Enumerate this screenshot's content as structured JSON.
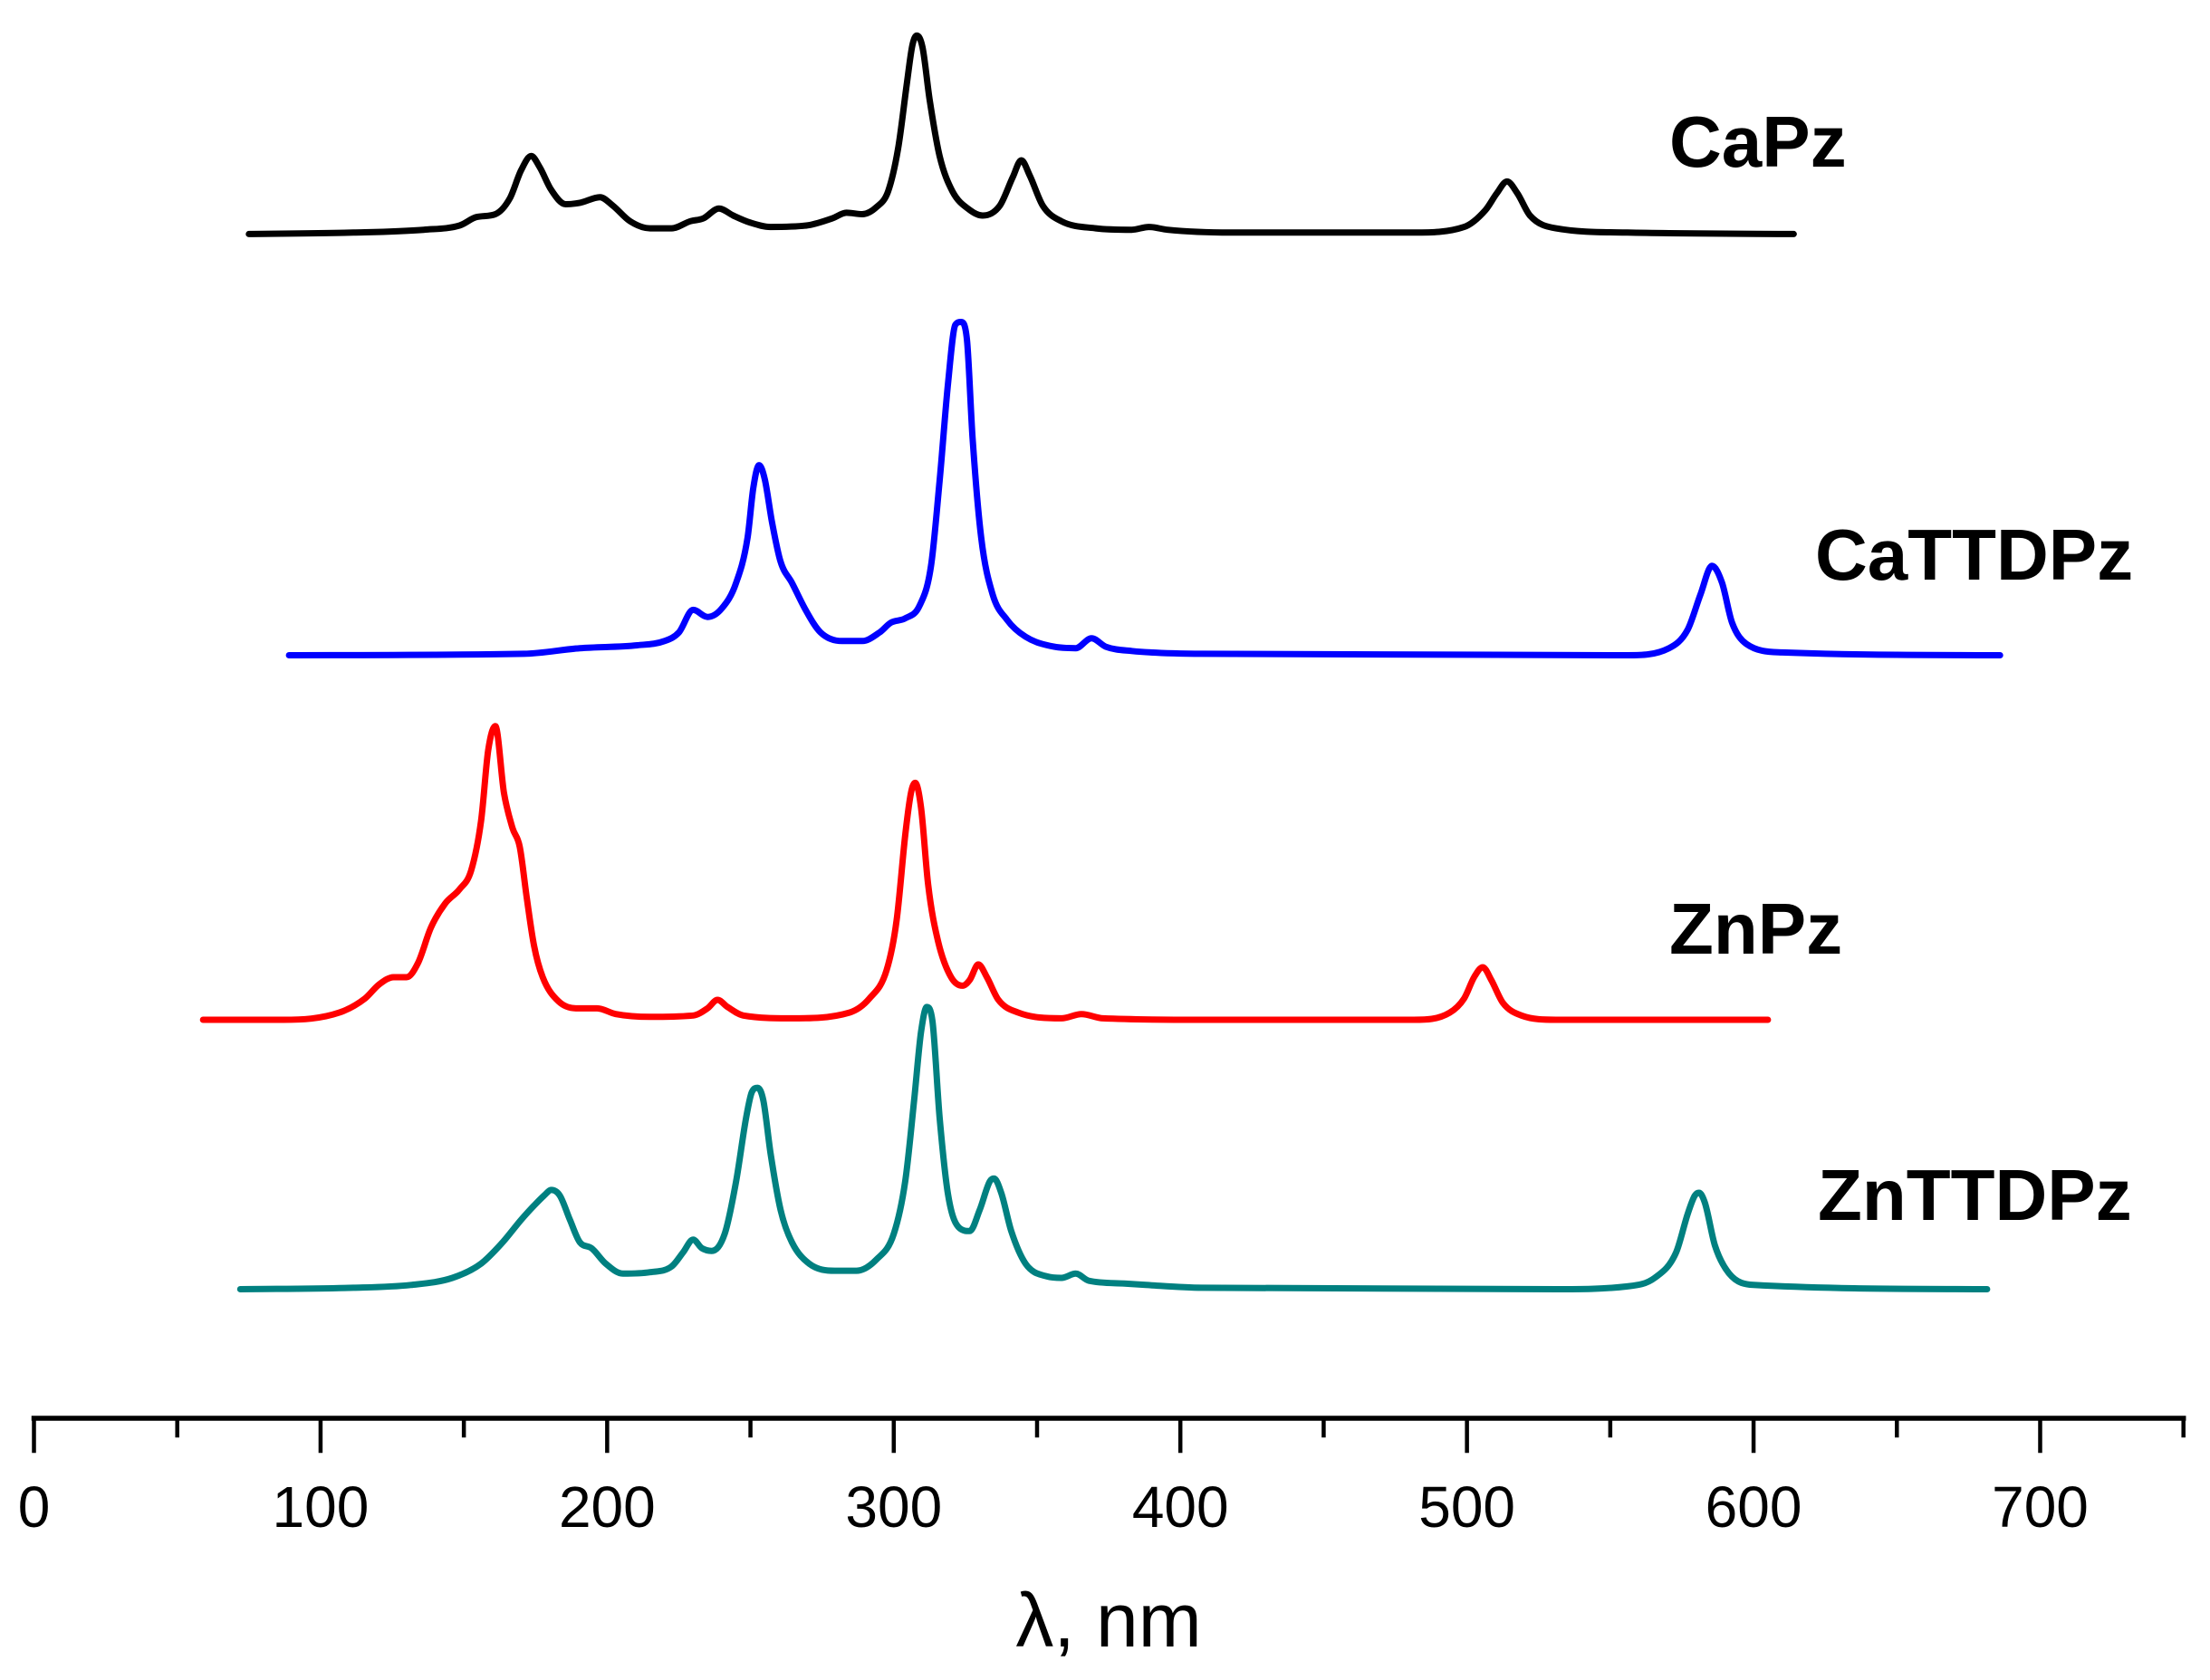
{
  "chart_data": {
    "type": "line",
    "title": "",
    "xlabel": "λ, nm",
    "ylabel": "",
    "xlim": [
      0,
      750
    ],
    "ylim": [
      0,
      100
    ],
    "xticks": [
      0,
      100,
      200,
      300,
      400,
      500,
      600,
      700
    ],
    "xtick_labels": [
      "0",
      "100",
      "200",
      "300",
      "400",
      "500",
      "600",
      "700"
    ],
    "minor_xticks": [
      50,
      150,
      250,
      350,
      450,
      550,
      650,
      750
    ],
    "y_axis_visible": false,
    "grid": false,
    "legend": "none (series labelled inline, right of each trace)",
    "stacking": "traces vertically offset; y = intensity (a.u.) above each trace offset",
    "series": [
      {
        "name": "CaPz",
        "color": "#000000",
        "offset": 83.5,
        "x": [
          75,
          111.5,
          136,
          148.5,
          154.5,
          161,
          166,
          170,
          173.5,
          176.5,
          180.5,
          185.5,
          190.5,
          197.5,
          202,
          208,
          215,
          222.5,
          229,
          233.5,
          239,
          244,
          250,
          257,
          269.5,
          278.5,
          283.5,
          289,
          294,
          298,
          301.5,
          304.5,
          306.5,
          308,
          310,
          312.5,
          316,
          320.5,
          326.5,
          331,
          337,
          341.5,
          344.5,
          347.5,
          352,
          358.5,
          370.5,
          383,
          389,
          395.5,
          417.5,
          481.5,
          499,
          506.5,
          510.5,
          514,
          517.5,
          522,
          531,
          556,
          614
        ],
        "y": [
          0,
          0.1,
          0.3,
          0.6,
          1.2,
          1.4,
          2.5,
          4.5,
          5.5,
          4.7,
          3.1,
          2.1,
          2.2,
          2.6,
          2.0,
          0.9,
          0.4,
          0.4,
          0.9,
          1.1,
          1.8,
          1.3,
          0.8,
          0.5,
          0.6,
          1.1,
          1.5,
          1.4,
          1.9,
          3.0,
          6.0,
          10.5,
          13.3,
          14.0,
          13.2,
          9.5,
          5.5,
          3.0,
          1.7,
          1.3,
          2.0,
          4.0,
          5.2,
          4.1,
          2.0,
          0.9,
          0.4,
          0.3,
          0.5,
          0.3,
          0.1,
          0.1,
          0.5,
          1.7,
          2.9,
          3.7,
          2.9,
          1.3,
          0.4,
          0.1,
          0
        ]
      },
      {
        "name": "CaTTDPz",
        "color": "#0000ff",
        "offset": 53.8,
        "x": [
          89,
          171,
          190.5,
          210.5,
          220,
          225,
          230,
          235,
          240,
          245,
          249,
          251,
          253,
          255,
          257.5,
          260.5,
          264.5,
          269.5,
          274.5,
          282,
          289,
          295,
          299,
          304,
          309,
          313,
          316,
          319,
          321.5,
          323.5,
          325.5,
          327.5,
          330.5,
          334.5,
          339.5,
          346,
          356,
          363.5,
          369,
          374,
          383,
          407.5,
          556,
          570.5,
          577,
          581.5,
          585.5,
          589,
          592.5,
          597.5,
          610,
          686
        ],
        "y": [
          0,
          0.1,
          0.5,
          0.7,
          1.0,
          1.6,
          3.2,
          2.7,
          3.3,
          5.1,
          8.3,
          11.8,
          13.4,
          12.4,
          9.4,
          6.6,
          5.1,
          3.1,
          1.6,
          1.0,
          1.0,
          1.6,
          2.3,
          2.6,
          3.5,
          6.3,
          12.3,
          19.3,
          23.3,
          23.5,
          22.3,
          15.3,
          8.3,
          4.3,
          2.5,
          1.3,
          0.6,
          0.5,
          1.2,
          0.6,
          0.3,
          0.1,
          0,
          0.5,
          1.8,
          4.3,
          6.3,
          5.1,
          2.3,
          0.8,
          0.2,
          0
        ]
      },
      {
        "name": "ZnPz",
        "color": "#ff0000",
        "offset": 28.1,
        "x": [
          59,
          87,
          106.5,
          115.5,
          120.5,
          125.5,
          130,
          134,
          138.5,
          143.5,
          148.5,
          152.5,
          156,
          158.5,
          161,
          164,
          167,
          169.5,
          172,
          174.5,
          177.5,
          183,
          189.5,
          196.5,
          203,
          215,
          230,
          235,
          238.5,
          242,
          247.5,
          264.5,
          284.5,
          291.5,
          297.5,
          301,
          304,
          306,
          307.5,
          309.5,
          312,
          315.5,
          320,
          324,
          326.5,
          329.5,
          332.5,
          336.5,
          343.5,
          358.5,
          365.5,
          373,
          407.5,
          481.5,
          494,
          499,
          502.5,
          505.5,
          508.5,
          512.5,
          519,
          531,
          605
        ],
        "y": [
          0,
          0,
          0.5,
          1.5,
          2.5,
          3.0,
          3.0,
          4.0,
          6.5,
          8.2,
          9.2,
          10.5,
          14.0,
          19.0,
          20.7,
          16.0,
          13.5,
          12.2,
          8.5,
          5.2,
          3.0,
          1.3,
          0.8,
          0.8,
          0.4,
          0.2,
          0.3,
          0.8,
          1.4,
          0.9,
          0.3,
          0.1,
          0.5,
          1.5,
          3.5,
          7.0,
          13.0,
          16.0,
          16.7,
          15.0,
          9.5,
          5.5,
          3.0,
          2.4,
          2.8,
          3.9,
          3.0,
          1.4,
          0.5,
          0.1,
          0.4,
          0.1,
          0,
          0,
          0.5,
          1.5,
          3.0,
          3.7,
          2.8,
          1.2,
          0.3,
          0,
          0
        ]
      },
      {
        "name": "ZnTTDPz",
        "color": "#008080",
        "offset": 9.1,
        "x": [
          72,
          111.5,
          131.5,
          146,
          156,
          163.5,
          170,
          174.5,
          178,
          180.5,
          183.5,
          187,
          190.5,
          194.5,
          199.5,
          205.5,
          215,
          222.5,
          226.5,
          230,
          233,
          236.5,
          241,
          245,
          248.5,
          250.5,
          252.5,
          254.5,
          257,
          260.5,
          264.5,
          270.5,
          279.5,
          287,
          294,
          300,
          304,
          307,
          309.5,
          311.5,
          313.5,
          316,
          319,
          323,
          326.5,
          330,
          333.5,
          335,
          337.5,
          341,
          346,
          353.5,
          358.5,
          363.5,
          368,
          380.5,
          388,
          407.5,
          531,
          556,
          565.5,
          573,
          577,
          579.5,
          581,
          583,
          586.5,
          591.5,
          600,
          681.5
        ],
        "y": [
          0,
          0.1,
          0.3,
          0.8,
          1.8,
          3.3,
          4.9,
          5.9,
          6.6,
          7.0,
          6.6,
          4.9,
          3.3,
          2.9,
          1.8,
          1.1,
          1.2,
          1.6,
          2.6,
          3.5,
          2.9,
          2.7,
          3.9,
          7.6,
          12.1,
          13.9,
          14.2,
          13.3,
          9.6,
          5.6,
          3.3,
          1.8,
          1.3,
          1.3,
          2.1,
          3.9,
          7.6,
          13.1,
          18.1,
          19.9,
          18.9,
          12.1,
          6.6,
          4.3,
          4.1,
          5.6,
          7.6,
          7.8,
          6.8,
          4.1,
          1.8,
          0.9,
          0.8,
          1.1,
          0.6,
          0.4,
          0.3,
          0.1,
          0,
          0.2,
          0.8,
          2.6,
          5.3,
          6.6,
          6.8,
          6.1,
          3.1,
          1.1,
          0.3,
          0
        ]
      }
    ]
  }
}
